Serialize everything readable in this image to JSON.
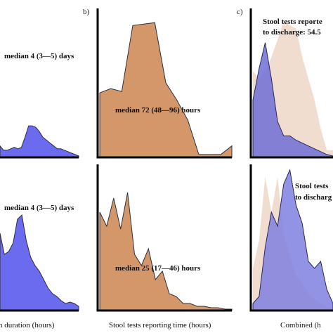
{
  "chart_data": [
    {
      "panel": "a-top",
      "type": "area",
      "xlabel": "",
      "annotation": "median 4 (3—5) days",
      "color": "#6b6bf0",
      "x": [
        0,
        1,
        2,
        3,
        4,
        5,
        6,
        7,
        8,
        9,
        10,
        11,
        12,
        13,
        14,
        15,
        16,
        17,
        18,
        19,
        20,
        21,
        22
      ],
      "values": [
        0.08,
        0.05,
        0.05,
        0.06,
        0.07,
        0.06,
        0.07,
        0.14,
        0.22,
        0.22,
        0.21,
        0.18,
        0.14,
        0.12,
        0.1,
        0.08,
        0.06,
        0.06,
        0.05,
        0.04,
        0.03,
        0.02,
        0.01
      ]
    },
    {
      "panel": "b-top",
      "type": "area",
      "label": "b)",
      "annotation": "median 72 (48—96) hours",
      "color": "#d4976a",
      "x": [
        0,
        1,
        2,
        3,
        4,
        5,
        6,
        7,
        8,
        9,
        10,
        11,
        12
      ],
      "values": [
        0.45,
        0.48,
        0.46,
        0.92,
        0.93,
        0.94,
        0.52,
        0.4,
        0.26,
        0.02,
        0.02,
        0.02,
        0.08
      ]
    },
    {
      "panel": "c-top",
      "type": "area",
      "label": "c)",
      "annotation_lines": [
        "Stool tests reporte",
        "to discharge: 54.5"
      ],
      "series": [
        {
          "color": "#f1ddcf",
          "values": [
            0.6,
            0.55,
            0.6,
            0.7,
            0.82,
            0.95,
            0.92,
            0.9,
            0.7,
            0.55,
            0.4,
            0.2,
            0.05,
            0.05
          ]
        },
        {
          "color": "#6f6fd6",
          "values": [
            0.4,
            0.62,
            0.8,
            0.55,
            0.25,
            0.15,
            0.15,
            0.12,
            0.1,
            0.08,
            0.06,
            0.04,
            0.02,
            0.01
          ]
        }
      ]
    },
    {
      "panel": "a-bottom",
      "type": "area",
      "xlabel": "n duration (hours)",
      "annotation": "median 4 (3—5) days",
      "color": "#6b6bf0",
      "x": [
        0,
        1,
        2,
        3,
        4,
        5,
        6,
        7,
        8,
        9,
        10,
        11,
        12,
        13,
        14,
        15,
        16,
        17,
        18
      ],
      "values": [
        0.55,
        0.4,
        0.42,
        0.48,
        0.65,
        0.68,
        0.5,
        0.38,
        0.32,
        0.28,
        0.22,
        0.16,
        0.12,
        0.1,
        0.07,
        0.05,
        0.06,
        0.05,
        0.03
      ]
    },
    {
      "panel": "b-bottom",
      "type": "area",
      "xlabel": "Stool tests reporting time (hours)",
      "annotation": "median 25 (17—46) hours",
      "color": "#d4976a",
      "x": [
        0,
        1,
        2,
        3,
        4,
        5,
        6,
        7,
        8,
        9,
        10,
        11,
        12,
        13,
        14,
        15,
        16,
        17,
        18,
        19
      ],
      "values": [
        0.7,
        0.6,
        0.8,
        0.58,
        0.84,
        0.4,
        0.32,
        0.44,
        0.22,
        0.28,
        0.12,
        0.1,
        0.05,
        0.05,
        0.03,
        0.03,
        0.02,
        0.02,
        0.01,
        0.01
      ]
    },
    {
      "panel": "c-bottom",
      "type": "area",
      "xlabel": "Combined (h",
      "annotation_lines": [
        "Stool tests",
        "to discharg"
      ],
      "series": [
        {
          "color": "#f1ddcf",
          "values": [
            0.3,
            0.5,
            0.95,
            0.7,
            0.95,
            0.55,
            0.4,
            0.25,
            0.2,
            0.12,
            0.08,
            0.05,
            0.03,
            0.02
          ]
        },
        {
          "color": "#8080e0",
          "values": [
            0.05,
            0.1,
            0.45,
            0.7,
            0.6,
            0.9,
            1.0,
            0.75,
            0.62,
            0.35,
            0.3,
            0.35,
            0.15,
            0.05
          ]
        }
      ]
    }
  ]
}
